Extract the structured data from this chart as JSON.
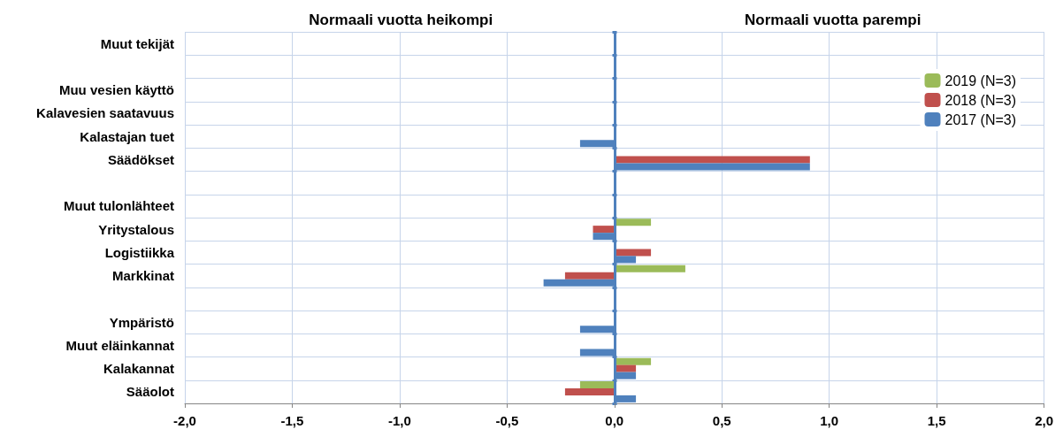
{
  "chart_data": {
    "type": "bar",
    "orientation": "horizontal",
    "annotations": [
      "Normaali vuotta heikompi",
      "Normaali vuotta parempi"
    ],
    "categories": [
      "Muut tekijät",
      null,
      "Muu vesien käyttö",
      "Kalavesien saatavuus",
      "Kalastajan tuet",
      "Säädökset",
      null,
      "Muut tulonlähteet",
      "Yritystalous",
      "Logistiikka",
      "Markkinat",
      null,
      "Ympäristö",
      "Muut eläinkannat",
      "Kalakannat",
      "Sääolot"
    ],
    "series": [
      {
        "name": "2019 (N=3)",
        "color": "#9bbb59",
        "values": [
          null,
          null,
          null,
          null,
          null,
          null,
          null,
          null,
          0.17,
          null,
          0.33,
          null,
          null,
          null,
          0.17,
          -0.16
        ]
      },
      {
        "name": "2018 (N=3)",
        "color": "#c0504d",
        "values": [
          null,
          null,
          null,
          null,
          null,
          0.91,
          null,
          null,
          -0.1,
          0.17,
          -0.23,
          null,
          null,
          null,
          0.1,
          -0.23
        ]
      },
      {
        "name": "2017 (N=3)",
        "color": "#4f81bd",
        "values": [
          null,
          null,
          null,
          null,
          -0.16,
          0.91,
          null,
          null,
          -0.1,
          0.1,
          -0.33,
          null,
          -0.16,
          -0.16,
          0.1,
          0.1
        ]
      }
    ],
    "xlim": [
      -2,
      2
    ],
    "xticks": [
      {
        "value": -2,
        "label": "-2,0"
      },
      {
        "value": -1.5,
        "label": "-1,5"
      },
      {
        "value": -1,
        "label": "-1,0"
      },
      {
        "value": -0.5,
        "label": "-0,5"
      },
      {
        "value": 0,
        "label": "0,0"
      },
      {
        "value": 0.5,
        "label": "0,5"
      },
      {
        "value": 1,
        "label": "1,0"
      },
      {
        "value": 1.5,
        "label": "1,5"
      },
      {
        "value": 2,
        "label": "2,0"
      }
    ],
    "ref_lines": [
      {
        "axis": "x",
        "value": 0,
        "color": "#4f81bd"
      }
    ],
    "grid": true,
    "legend": "top right"
  }
}
